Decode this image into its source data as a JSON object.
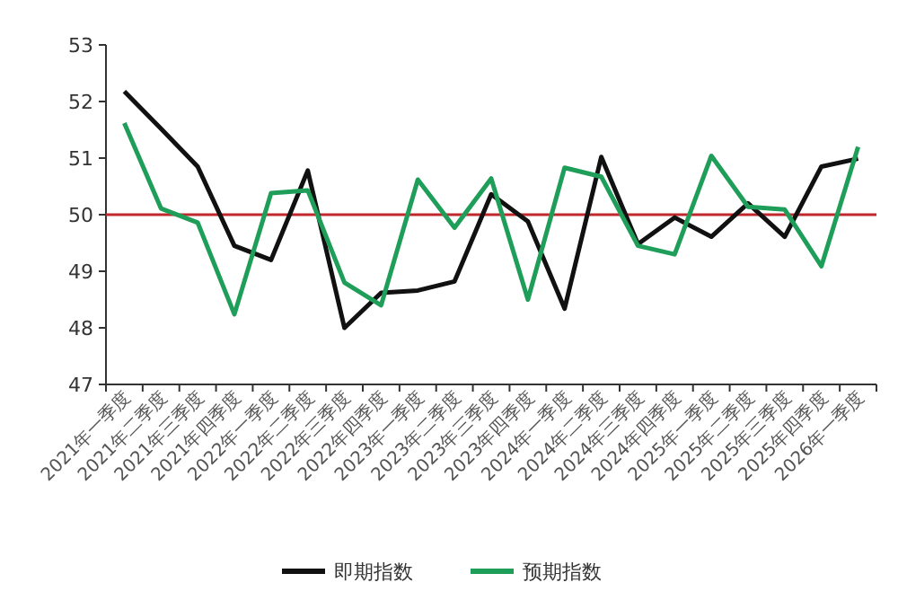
{
  "chart_data": {
    "type": "line",
    "categories": [
      "2021年一季度",
      "2021年二季度",
      "2021年三季度",
      "2021年四季度",
      "2022年一季度",
      "2022年二季度",
      "2022年三季度",
      "2022年四季度",
      "2023年一季度",
      "2023年二季度",
      "2023年三季度",
      "2023年四季度",
      "2024年一季度",
      "2024年二季度",
      "2024年三季度",
      "2024年四季度",
      "2025年一季度",
      "2025年二季度",
      "2025年三季度",
      "2025年四季度",
      "2026年一季度"
    ],
    "series": [
      {
        "name": "即期指数",
        "color": "#111111",
        "values": [
          52.18,
          51.52,
          50.85,
          49.45,
          49.2,
          50.78,
          48.0,
          48.62,
          48.66,
          48.82,
          50.36,
          49.88,
          48.34,
          51.02,
          49.48,
          49.95,
          49.61,
          50.2,
          49.61,
          50.85,
          50.99
        ]
      },
      {
        "name": "预期指数",
        "color": "#1f9e5a",
        "values": [
          51.62,
          50.11,
          49.86,
          48.24,
          50.38,
          50.43,
          48.8,
          48.4,
          50.62,
          49.77,
          50.64,
          48.5,
          50.83,
          50.67,
          49.45,
          49.3,
          51.04,
          50.14,
          50.09,
          49.09,
          51.2
        ]
      }
    ],
    "ylim": [
      47,
      53
    ],
    "yticks": [
      47,
      48,
      49,
      50,
      51,
      52,
      53
    ],
    "ref_lines": [
      {
        "axis": "y",
        "value": 50,
        "color": "#c0282d"
      }
    ],
    "legend": "bottom",
    "grid": false,
    "marker": "none",
    "line_style": "solid"
  }
}
